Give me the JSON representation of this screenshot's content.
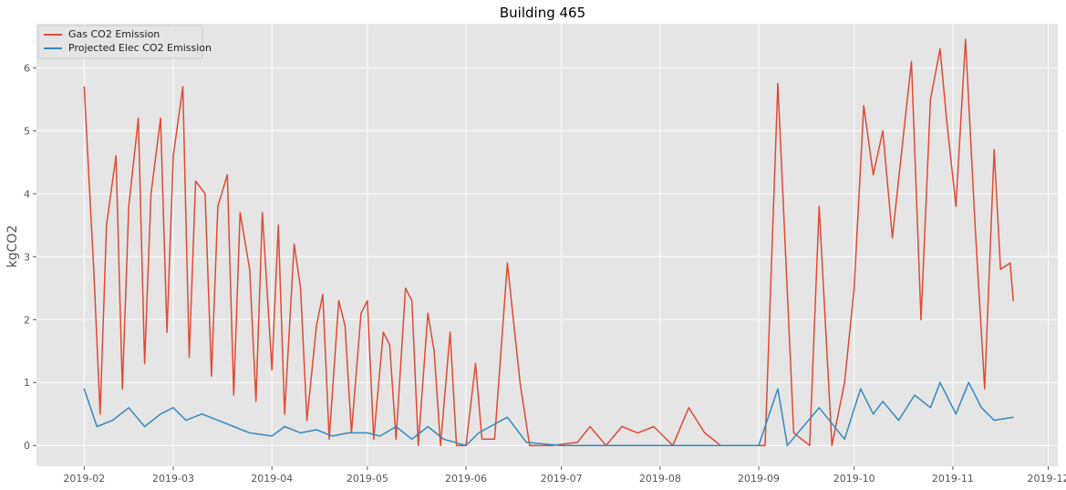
{
  "chart_data": {
    "type": "line",
    "title": "Building 465",
    "xlabel": "",
    "ylabel": "kgCO2",
    "style": "ggplot",
    "grid": true,
    "legend_position": "top-left",
    "x_range": [
      "2019-01-17",
      "2019-12-04"
    ],
    "ylim": [
      -0.33,
      6.7
    ],
    "x_ticks": [
      "2019-02",
      "2019-03",
      "2019-04",
      "2019-05",
      "2019-06",
      "2019-07",
      "2019-08",
      "2019-09",
      "2019-10",
      "2019-11",
      "2019-12"
    ],
    "y_ticks": [
      0,
      1,
      2,
      3,
      4,
      5,
      6
    ],
    "colors": {
      "gas": "#E24A33",
      "elec": "#348ABD"
    },
    "series": [
      {
        "name": "Gas CO2 Emission",
        "color": "#E24A33",
        "x": [
          "2019-02-01",
          "2019-02-04",
          "2019-02-06",
          "2019-02-08",
          "2019-02-11",
          "2019-02-13",
          "2019-02-15",
          "2019-02-18",
          "2019-02-20",
          "2019-02-22",
          "2019-02-25",
          "2019-02-27",
          "2019-03-01",
          "2019-03-04",
          "2019-03-06",
          "2019-03-08",
          "2019-03-11",
          "2019-03-13",
          "2019-03-15",
          "2019-03-18",
          "2019-03-20",
          "2019-03-22",
          "2019-03-25",
          "2019-03-27",
          "2019-03-29",
          "2019-04-01",
          "2019-04-03",
          "2019-04-05",
          "2019-04-08",
          "2019-04-10",
          "2019-04-12",
          "2019-04-15",
          "2019-04-17",
          "2019-04-19",
          "2019-04-22",
          "2019-04-24",
          "2019-04-26",
          "2019-04-29",
          "2019-05-01",
          "2019-05-03",
          "2019-05-06",
          "2019-05-08",
          "2019-05-10",
          "2019-05-13",
          "2019-05-15",
          "2019-05-17",
          "2019-05-20",
          "2019-05-22",
          "2019-05-24",
          "2019-05-27",
          "2019-05-29",
          "2019-06-01",
          "2019-06-04",
          "2019-06-06",
          "2019-06-10",
          "2019-06-14",
          "2019-06-18",
          "2019-06-21",
          "2019-06-28",
          "2019-07-06",
          "2019-07-10",
          "2019-07-15",
          "2019-07-20",
          "2019-07-25",
          "2019-07-30",
          "2019-08-05",
          "2019-08-10",
          "2019-08-15",
          "2019-08-20",
          "2019-08-25",
          "2019-08-30",
          "2019-09-03",
          "2019-09-07",
          "2019-09-12",
          "2019-09-17",
          "2019-09-20",
          "2019-09-24",
          "2019-09-28",
          "2019-10-01",
          "2019-10-04",
          "2019-10-07",
          "2019-10-10",
          "2019-10-13",
          "2019-10-16",
          "2019-10-19",
          "2019-10-22",
          "2019-10-25",
          "2019-10-28",
          "2019-10-30",
          "2019-11-02",
          "2019-11-05",
          "2019-11-08",
          "2019-11-11",
          "2019-11-14",
          "2019-11-16",
          "2019-11-19",
          "2019-11-20"
        ],
        "y": [
          5.7,
          2.8,
          0.5,
          3.5,
          4.6,
          0.9,
          3.8,
          5.2,
          1.3,
          4.0,
          5.2,
          1.8,
          4.6,
          5.7,
          1.4,
          4.2,
          4.0,
          1.1,
          3.8,
          4.3,
          0.8,
          3.7,
          2.8,
          0.7,
          3.7,
          1.2,
          3.5,
          0.5,
          3.2,
          2.5,
          0.4,
          1.9,
          2.4,
          0.1,
          2.3,
          1.9,
          0.2,
          2.1,
          2.3,
          0.1,
          1.8,
          1.6,
          0.1,
          2.5,
          2.3,
          0.0,
          2.1,
          1.5,
          0.0,
          1.8,
          0.0,
          0.0,
          1.3,
          0.1,
          0.1,
          2.9,
          1.0,
          0.0,
          0.0,
          0.05,
          0.3,
          0.0,
          0.3,
          0.2,
          0.3,
          0.0,
          0.6,
          0.2,
          0.0,
          0.0,
          0.0,
          0.0,
          5.75,
          0.2,
          0.0,
          3.8,
          0.0,
          1.0,
          2.5,
          5.4,
          4.3,
          5.0,
          3.3,
          4.7,
          6.1,
          2.0,
          5.5,
          6.3,
          5.2,
          3.8,
          6.45,
          3.5,
          0.9,
          4.7,
          2.8,
          2.9,
          2.3
        ]
      },
      {
        "name": "Projected Elec CO2 Emission",
        "color": "#348ABD",
        "x": [
          "2019-02-01",
          "2019-02-05",
          "2019-02-10",
          "2019-02-15",
          "2019-02-20",
          "2019-02-25",
          "2019-03-01",
          "2019-03-05",
          "2019-03-10",
          "2019-03-15",
          "2019-03-20",
          "2019-03-25",
          "2019-04-01",
          "2019-04-05",
          "2019-04-10",
          "2019-04-15",
          "2019-04-20",
          "2019-04-25",
          "2019-05-01",
          "2019-05-05",
          "2019-05-10",
          "2019-05-15",
          "2019-05-20",
          "2019-05-25",
          "2019-06-01",
          "2019-06-05",
          "2019-06-14",
          "2019-06-20",
          "2019-07-01",
          "2019-07-15",
          "2019-08-01",
          "2019-08-15",
          "2019-09-01",
          "2019-09-07",
          "2019-09-10",
          "2019-09-20",
          "2019-09-28",
          "2019-10-03",
          "2019-10-07",
          "2019-10-10",
          "2019-10-15",
          "2019-10-20",
          "2019-10-25",
          "2019-10-28",
          "2019-11-02",
          "2019-11-06",
          "2019-11-10",
          "2019-11-14",
          "2019-11-20"
        ],
        "y": [
          0.9,
          0.3,
          0.4,
          0.6,
          0.3,
          0.5,
          0.6,
          0.4,
          0.5,
          0.4,
          0.3,
          0.2,
          0.15,
          0.3,
          0.2,
          0.25,
          0.15,
          0.2,
          0.2,
          0.15,
          0.3,
          0.1,
          0.3,
          0.1,
          0.0,
          0.2,
          0.45,
          0.05,
          0.0,
          0.0,
          0.0,
          0.0,
          0.0,
          0.9,
          0.0,
          0.6,
          0.1,
          0.9,
          0.5,
          0.7,
          0.4,
          0.8,
          0.6,
          1.0,
          0.5,
          1.0,
          0.6,
          0.4,
          0.45
        ]
      }
    ]
  }
}
